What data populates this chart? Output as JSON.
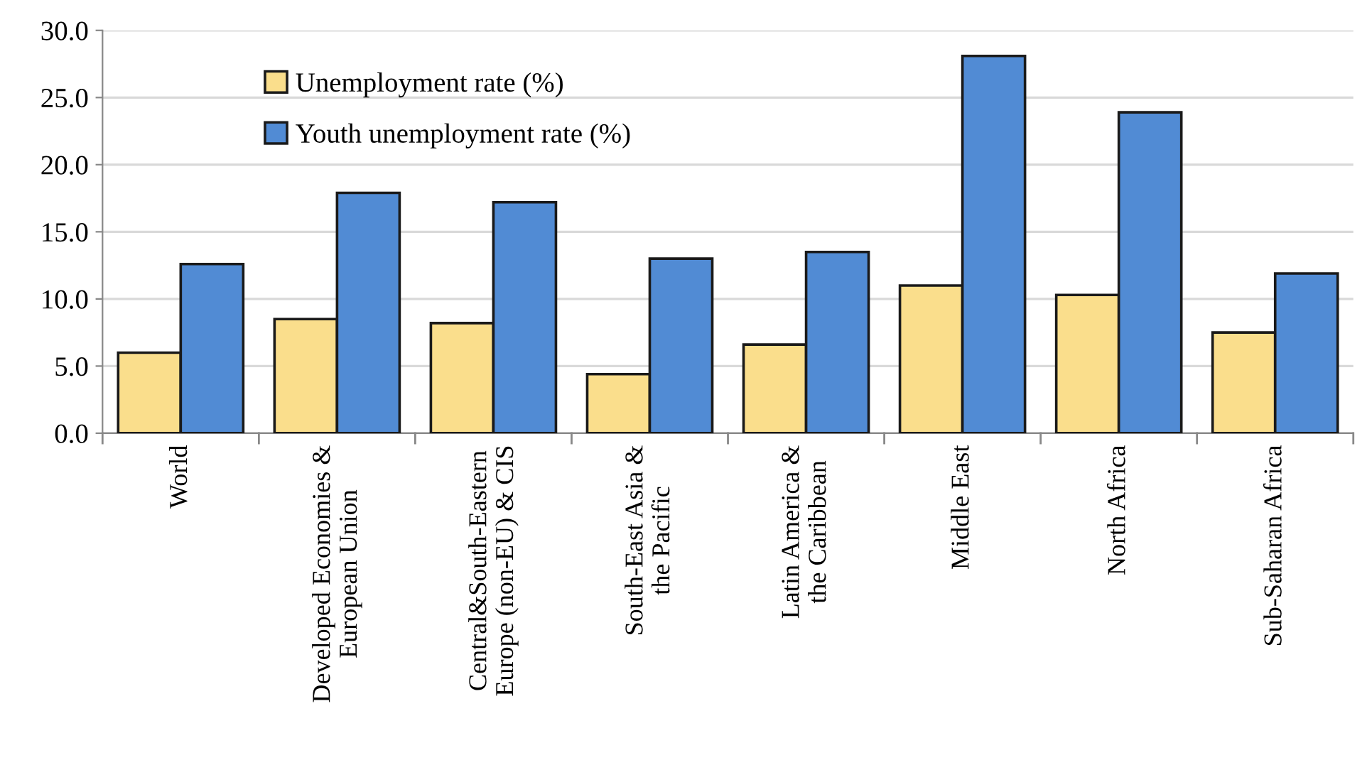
{
  "chart_data": {
    "type": "bar",
    "categories": [
      "World",
      "Developed Economies &\nEuropean Union",
      "Central&South-Eastern\nEurope (non-EU) & CIS",
      "South-East Asia &\nthe Pacific",
      "Latin America &\nthe Caribbean",
      "Middle East",
      "North Africa",
      "Sub-Saharan Africa"
    ],
    "series": [
      {
        "name": "Unemployment rate (%)",
        "color": "#fade8c",
        "values": [
          6.0,
          8.5,
          8.2,
          4.4,
          6.6,
          11.0,
          10.3,
          7.5
        ]
      },
      {
        "name": "Youth unemployment rate (%)",
        "color": "#518bd4",
        "values": [
          12.6,
          17.9,
          17.2,
          13.0,
          13.5,
          28.1,
          23.9,
          11.9
        ]
      }
    ],
    "ylim": [
      0,
      30
    ],
    "yticks": [
      {
        "value": 0,
        "label": "0.0"
      },
      {
        "value": 5,
        "label": "5.0"
      },
      {
        "value": 10,
        "label": "10.0"
      },
      {
        "value": 15,
        "label": "15.0"
      },
      {
        "value": 20,
        "label": "20.0"
      },
      {
        "value": 25,
        "label": "25.0"
      },
      {
        "value": 30,
        "label": "30.0"
      }
    ],
    "grid": "y",
    "legend": "top left"
  }
}
